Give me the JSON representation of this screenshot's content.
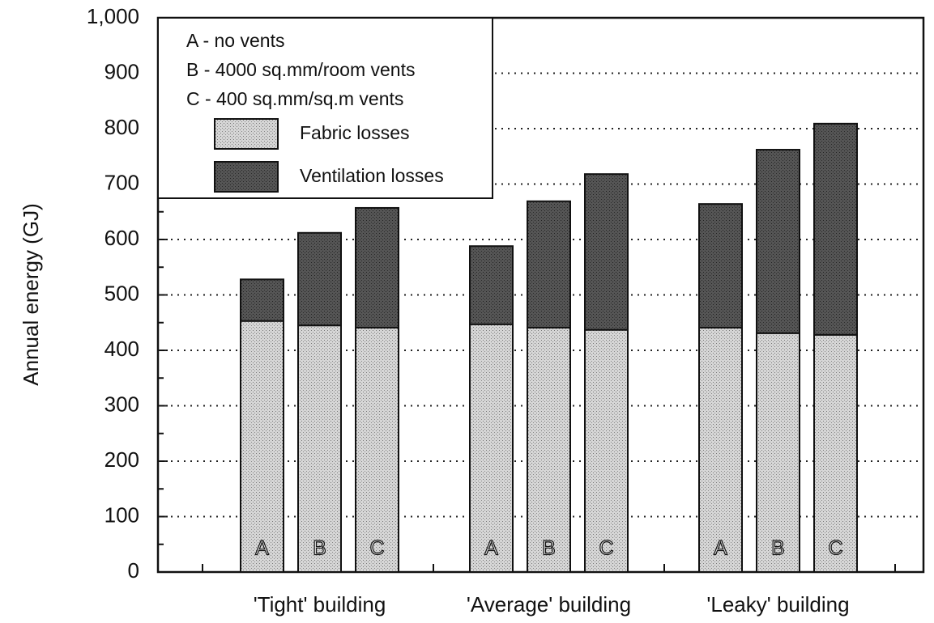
{
  "chart_data": {
    "type": "stacked-bar",
    "y_label": "Annual energy (GJ)",
    "groups": [
      "'Tight' building",
      "'Average' building",
      "'Leaky' building"
    ],
    "categories": [
      "A",
      "B",
      "C",
      "A",
      "B",
      "C",
      "A",
      "B",
      "C"
    ],
    "legend_notes": [
      "A - no vents",
      "B - 4000 sq.mm/room vents",
      "C - 400 sq.mm/sq.m vents"
    ],
    "series": [
      {
        "name": "Fabric losses",
        "color": "#c9c9c9",
        "values": [
          453,
          445,
          441,
          447,
          441,
          437,
          441,
          431,
          428
        ]
      },
      {
        "name": "Ventilation losses",
        "color": "#4a4a4a",
        "values": [
          75,
          167,
          216,
          141,
          228,
          281,
          223,
          331,
          381
        ]
      }
    ],
    "ylim": [
      0,
      1000
    ],
    "yticks": [
      0,
      100,
      200,
      300,
      400,
      500,
      600,
      700,
      800,
      900,
      {
        "value": 1000,
        "label": "1,000"
      }
    ],
    "grid": true,
    "legend": "upper left"
  }
}
